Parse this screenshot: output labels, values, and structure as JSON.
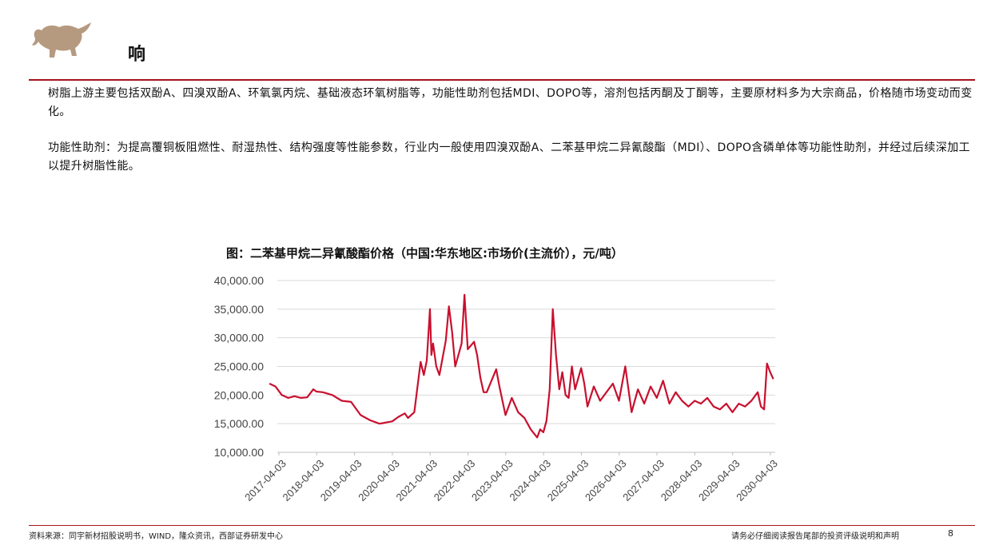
{
  "header": {
    "title": "响"
  },
  "paragraphs": [
    "树脂上游主要包括双酚A、四溴双酚A、环氧氯丙烷、基础液态环氧树脂等，功能性助剂包括MDI、DOPO等，溶剂包括丙酮及丁酮等，主要原材料多为大宗商品，价格随市场变动而变化。",
    "功能性助剂：为提高覆铜板阻燃性、耐湿热性、结构强度等性能参数，行业内一般使用四溴双酚A、二苯基甲烷二异氰酸酯（MDI）、DOPO含磷单体等功能性助剂，并经过后续深加工以提升树脂性能。"
  ],
  "chart_data": {
    "type": "line",
    "title": "图：二苯基甲烷二异氰酸酯价格（中国:华东地区:市场价(主流价），元/吨）",
    "xlabel": "",
    "ylabel": "",
    "ylim": [
      10000,
      40000
    ],
    "y_ticks": [
      "40,000.00",
      "35,000.00",
      "30,000.00",
      "25,000.00",
      "20,000.00",
      "15,000.00",
      "10,000.00"
    ],
    "x_ticks": [
      "2017-04-03",
      "2018-04-03",
      "2019-04-03",
      "2020-04-03",
      "2021-04-03",
      "2022-04-03",
      "2023-04-03",
      "2024-04-03",
      "2025-04-03",
      "2026-04-03",
      "2027-04-03",
      "2028-04-03",
      "2029-04-03",
      "2030-04-03"
    ],
    "grid": "horizontal",
    "legend": "none",
    "series": [
      {
        "color": "#c8102e",
        "x": [
          "2017-01-01",
          "2017-03-01",
          "2017-05-01",
          "2017-07-01",
          "2017-09-01",
          "2017-11-01",
          "2018-01-01",
          "2018-03-01",
          "2018-04-01",
          "2018-06-01",
          "2018-09-01",
          "2018-12-01",
          "2019-03-01",
          "2019-06-01",
          "2019-09-01",
          "2019-12-01",
          "2020-01-01",
          "2020-02-01",
          "2020-04-01",
          "2020-06-01",
          "2020-08-01",
          "2020-09-01",
          "2020-11-01",
          "2021-01-01",
          "2021-02-01",
          "2021-03-01",
          "2021-04-01",
          "2021-04-15",
          "2021-05-01",
          "2021-06-01",
          "2021-07-01",
          "2021-09-01",
          "2021-10-01",
          "2021-11-01",
          "2021-12-01",
          "2022-02-01",
          "2022-03-01",
          "2022-04-01",
          "2022-06-01",
          "2022-07-01",
          "2022-08-01",
          "2022-09-01",
          "2022-10-01",
          "2023-01-01",
          "2023-02-01",
          "2023-04-01",
          "2023-06-01",
          "2023-08-01",
          "2023-10-01",
          "2023-12-01",
          "2024-02-01",
          "2024-03-01",
          "2024-04-01",
          "2024-05-01",
          "2024-06-01",
          "2024-07-01",
          "2024-08-01",
          "2024-09-01",
          "2024-10-01",
          "2024-11-01",
          "2024-12-01",
          "2025-01-01",
          "2025-02-01",
          "2025-04-01",
          "2025-05-01",
          "2025-06-01",
          "2025-08-01",
          "2025-10-01",
          "2025-12-01",
          "2026-02-01",
          "2026-04-01",
          "2026-06-01",
          "2026-08-01",
          "2026-10-01",
          "2026-12-01",
          "2027-02-01",
          "2027-04-01",
          "2027-06-01",
          "2027-08-01",
          "2027-10-01",
          "2027-12-01",
          "2028-02-01",
          "2028-04-01",
          "2028-06-01",
          "2028-08-01",
          "2028-10-01",
          "2028-12-01",
          "2029-02-01",
          "2029-04-01",
          "2029-06-01",
          "2029-08-01",
          "2029-10-01",
          "2029-12-01",
          "2030-01-01",
          "2030-02-01",
          "2030-03-01",
          "2030-04-01",
          "2030-05-01"
        ],
        "values": [
          22000,
          21500,
          20000,
          19500,
          19800,
          19500,
          19600,
          21000,
          20600,
          20500,
          20000,
          19000,
          18800,
          16500,
          15600,
          15000,
          15100,
          15200,
          15400,
          16200,
          16800,
          16000,
          17000,
          25800,
          23500,
          26000,
          35000,
          27000,
          29000,
          25000,
          23500,
          29500,
          35500,
          31000,
          25000,
          29000,
          37500,
          28000,
          29300,
          27000,
          23000,
          20500,
          20500,
          24500,
          21500,
          16500,
          19500,
          17000,
          16000,
          14000,
          12600,
          14000,
          13500,
          15500,
          21000,
          35000,
          27000,
          21000,
          24000,
          20000,
          19500,
          25000,
          21000,
          24700,
          22000,
          18000,
          21500,
          19000,
          20500,
          22000,
          19000,
          25000,
          17000,
          21000,
          18500,
          21500,
          19500,
          22500,
          18500,
          20500,
          19000,
          18000,
          19000,
          18500,
          19500,
          18000,
          17500,
          18500,
          17000,
          18500,
          18000,
          19000,
          20500,
          18000,
          17500,
          25500,
          24000,
          22800
        ]
      }
    ]
  },
  "footer": {
    "source": "资料来源：同宇新材招股说明书，WIND，隆众资讯，西部证券研发中心",
    "notice": "请务必仔细阅读报告尾部的投资评级说明和声明",
    "page_number": "8"
  }
}
